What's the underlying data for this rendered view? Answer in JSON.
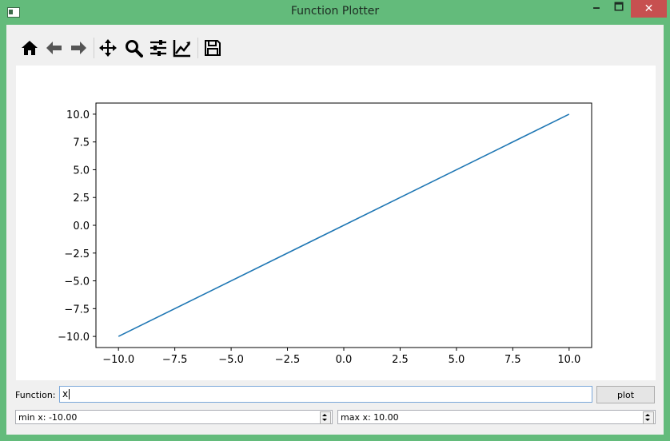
{
  "window": {
    "title": "Function Plotter",
    "minimize_glyph": "🗕",
    "maximize_glyph": "🗖",
    "close_glyph": "✕",
    "accent": "#63bb7b"
  },
  "toolbar": {
    "items": [
      {
        "name": "home-icon"
      },
      {
        "name": "back-arrow-icon"
      },
      {
        "name": "forward-arrow-icon"
      },
      {
        "name": "pan-icon"
      },
      {
        "name": "zoom-icon"
      },
      {
        "name": "subplots-config-icon"
      },
      {
        "name": "edit-axes-icon"
      },
      {
        "name": "save-icon"
      }
    ]
  },
  "form": {
    "function_label": "Function:",
    "function_value": "x",
    "plot_button": "plot",
    "min_x": "min x: -10.00",
    "max_x": "max x: 10.00"
  },
  "chart_data": {
    "type": "line",
    "x": [
      -10.0,
      10.0
    ],
    "series": [
      {
        "values": [
          -10.0,
          10.0
        ],
        "color": "#1f77b4"
      }
    ],
    "xlim": [
      -11.0,
      11.0
    ],
    "ylim": [
      -11.0,
      11.0
    ],
    "xticks": [
      -10.0,
      -7.5,
      -5.0,
      -2.5,
      0.0,
      2.5,
      5.0,
      7.5,
      10.0
    ],
    "yticks": [
      -10.0,
      -7.5,
      -5.0,
      -2.5,
      0.0,
      2.5,
      5.0,
      7.5,
      10.0
    ],
    "xtick_labels": [
      "−10.0",
      "−7.5",
      "−5.0",
      "−2.5",
      "0.0",
      "2.5",
      "5.0",
      "7.5",
      "10.0"
    ],
    "ytick_labels": [
      "−10.0",
      "−7.5",
      "−5.0",
      "−2.5",
      "0.0",
      "2.5",
      "5.0",
      "7.5",
      "10.0"
    ],
    "grid": false
  }
}
